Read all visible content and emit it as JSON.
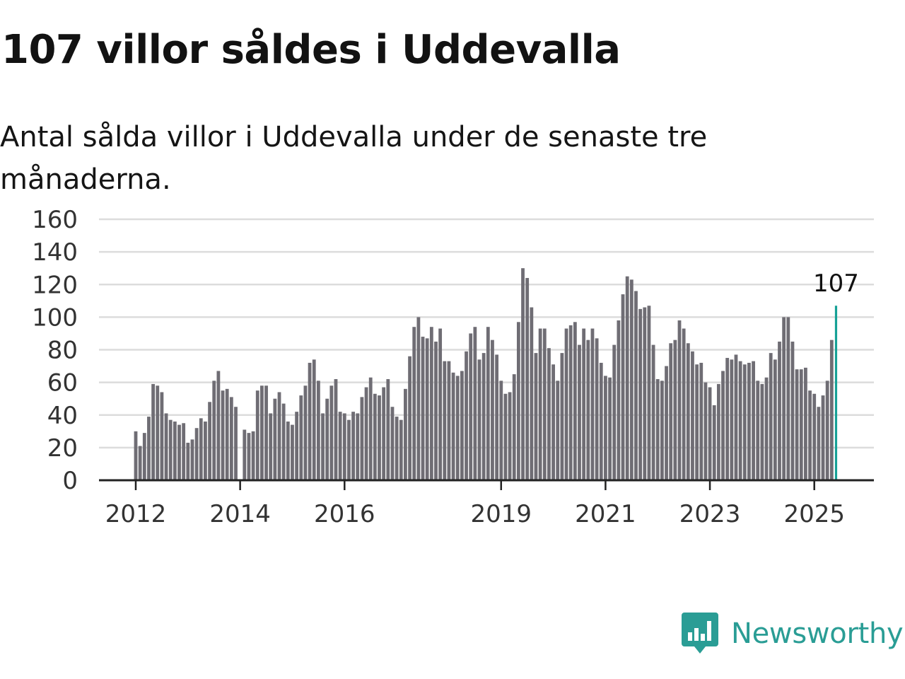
{
  "header": {
    "title": "107 villor såldes i Uddevalla",
    "subtitle": "Antal sålda villor i Uddevalla under de senaste tre månaderna."
  },
  "brand": {
    "name": "Newsworthy",
    "icon": "newsworthy-chart-logo-icon",
    "color": "#2a9d95"
  },
  "colors": {
    "bar": "#6f6d74",
    "highlight": "#16a196",
    "grid": "#dcdcdc",
    "axis": "#222222"
  },
  "chart_data": {
    "type": "bar",
    "title": "107 villor såldes i Uddevalla",
    "xlabel": "",
    "ylabel": "",
    "ylim": [
      0,
      160
    ],
    "yticks": [
      0,
      20,
      40,
      60,
      80,
      100,
      120,
      140,
      160
    ],
    "grid": true,
    "start": "2012-01",
    "xticks": [
      {
        "label": "2012",
        "date": "2012-01"
      },
      {
        "label": "2014",
        "date": "2014-01"
      },
      {
        "label": "2016",
        "date": "2016-01"
      },
      {
        "label": "2019",
        "date": "2019-01"
      },
      {
        "label": "2021",
        "date": "2021-01"
      },
      {
        "label": "2023",
        "date": "2023-01"
      },
      {
        "label": "2025",
        "date": "2025-01"
      }
    ],
    "values": [
      30,
      21,
      29,
      39,
      59,
      58,
      54,
      41,
      37,
      36,
      34,
      35,
      23,
      25,
      32,
      38,
      36,
      48,
      61,
      67,
      55,
      56,
      51,
      45,
      null,
      31,
      29,
      30,
      55,
      58,
      58,
      41,
      50,
      54,
      47,
      36,
      34,
      42,
      52,
      58,
      72,
      74,
      61,
      41,
      50,
      58,
      62,
      42,
      41,
      37,
      42,
      41,
      51,
      57,
      63,
      53,
      52,
      57,
      62,
      45,
      39,
      37,
      56,
      76,
      94,
      100,
      88,
      87,
      94,
      85,
      93,
      73,
      73,
      66,
      64,
      67,
      79,
      90,
      94,
      74,
      78,
      94,
      86,
      77,
      61,
      53,
      54,
      65,
      97,
      130,
      124,
      106,
      78,
      93,
      93,
      81,
      71,
      61,
      78,
      93,
      95,
      97,
      83,
      93,
      86,
      93,
      87,
      72,
      64,
      63,
      83,
      98,
      114,
      125,
      123,
      116,
      105,
      106,
      107,
      83,
      62,
      61,
      70,
      84,
      86,
      98,
      93,
      84,
      79,
      71,
      72,
      60,
      57,
      46,
      59,
      67,
      75,
      74,
      77,
      73,
      71,
      72,
      73,
      61,
      59,
      63,
      78,
      74,
      85,
      100,
      100,
      85,
      68,
      68,
      69,
      55,
      53,
      45,
      52,
      61,
      86,
      107
    ],
    "highlight": {
      "label": "107",
      "value": 107
    }
  }
}
